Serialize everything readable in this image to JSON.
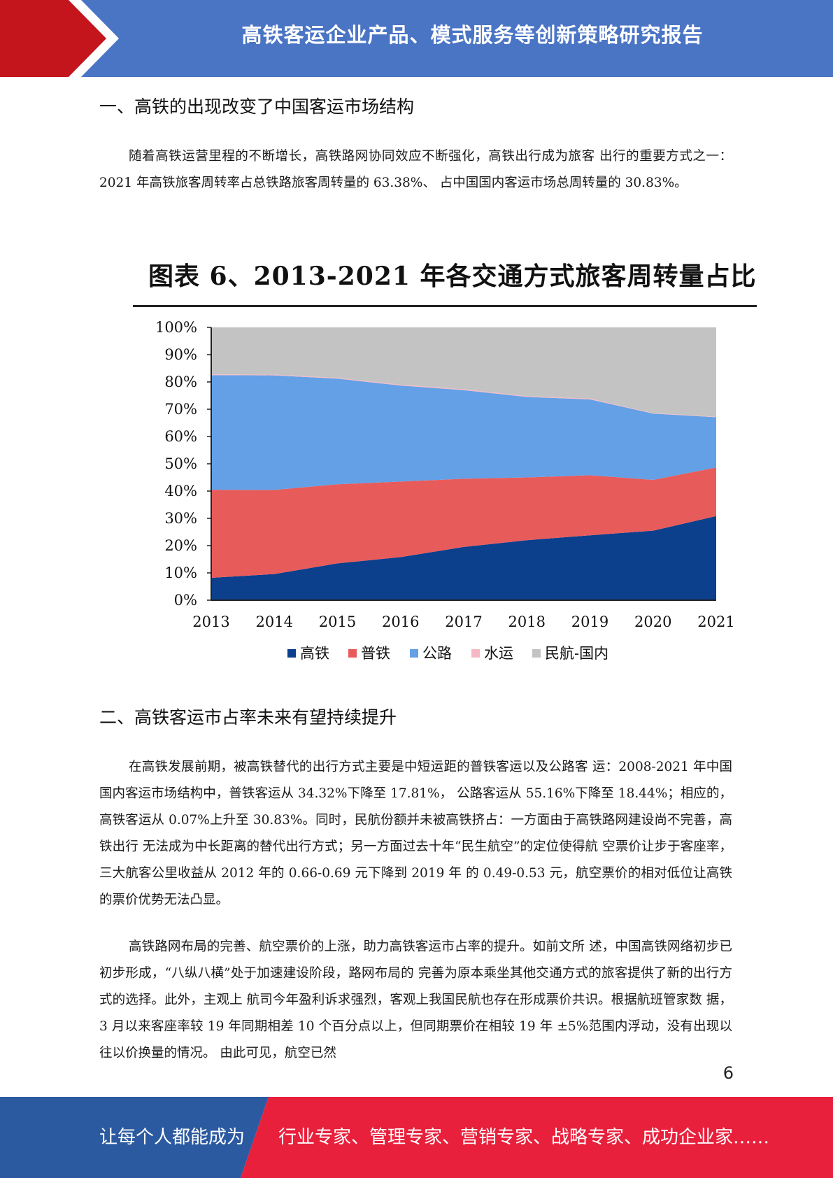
{
  "header": {
    "title": "高铁客运企业产品、模式服务等创新策略研究报告",
    "colors": {
      "bar": "#4a74c4",
      "accent": "#c4141c"
    }
  },
  "section1": {
    "heading": "一、高铁的出现改变了中国客运市场结构",
    "paragraph": "随着高铁运营里程的不断增长，高铁路网协同效应不断强化，高铁出行成为旅客 出行的重要方式之一：2021 年高铁旅客周转率占总铁路旅客周转量的 63.38%、 占中国国内客运市场总周转量的 30.83%。"
  },
  "figure": {
    "title": "图表 6、2013-2021 年各交通方式旅客周转量占比"
  },
  "chart_data": {
    "type": "area",
    "stacked": true,
    "x": [
      "2013",
      "2014",
      "2015",
      "2016",
      "2017",
      "2018",
      "2019",
      "2020",
      "2021"
    ],
    "ylim": [
      0,
      100
    ],
    "yticks": [
      "0%",
      "10%",
      "20%",
      "30%",
      "40%",
      "50%",
      "60%",
      "70%",
      "80%",
      "90%",
      "100%"
    ],
    "legend_position": "bottom",
    "series": [
      {
        "name": "高铁",
        "color": "#0c3f8c",
        "values": [
          8.2,
          9.6,
          13.5,
          15.8,
          19.5,
          22.0,
          23.8,
          25.5,
          30.83
        ]
      },
      {
        "name": "普铁",
        "color": "#e85b5b",
        "values": [
          32.3,
          30.8,
          29.0,
          27.7,
          25.0,
          23.0,
          22.0,
          18.6,
          17.81
        ]
      },
      {
        "name": "公路",
        "color": "#63a0e6",
        "values": [
          42.0,
          42.0,
          38.7,
          35.2,
          32.5,
          29.5,
          27.8,
          24.3,
          18.44
        ]
      },
      {
        "name": "水运",
        "color": "#f6b8c4",
        "values": [
          0.3,
          0.3,
          0.3,
          0.3,
          0.3,
          0.3,
          0.3,
          0.2,
          0.2
        ]
      },
      {
        "name": "民航-国内",
        "color": "#c3c3c3",
        "values": [
          17.2,
          17.3,
          18.5,
          21.0,
          22.7,
          25.2,
          26.1,
          31.4,
          32.72
        ]
      }
    ]
  },
  "section2": {
    "heading": "二、高铁客运市占率未来有望持续提升",
    "paragraph1": "在高铁发展前期，被高铁替代的出行方式主要是中短运距的普铁客运以及公路客 运：2008-2021 年中国国内客运市场结构中，普铁客运从 34.32%下降至 17.81%， 公路客运从 55.16%下降至 18.44%；相应的，高铁客运从 0.07%上升至 30.83%。同时，民航份额并未被高铁挤占：一方面由于高铁路网建设尚不完善，高铁出行 无法成为中长距离的替代出行方式；另一方面过去十年“民生航空”的定位使得航 空票价让步于客座率，三大航客公里收益从 2012 年的 0.66-0.69 元下降到 2019 年 的 0.49-0.53 元，航空票价的相对低位让高铁的票价优势无法凸显。",
    "paragraph2": "高铁路网布局的完善、航空票价的上涨，助力高铁客运市占率的提升。如前文所 述，中国高铁网络初步已初步形成，“八纵八横”处于加速建设阶段，路网布局的 完善为原本乘坐其他交通方式的旅客提供了新的出行方式的选择。此外，主观上 航司今年盈利诉求强烈，客观上我国民航也存在形成票价共识。根据航班管家数 据，3 月以来客座率较 19 年同期相差 10 个百分点以上，但同期票价在相较 19 年 ±5%范围内浮动，没有出现以往以价换量的情况。 由此可见，航空已然"
  },
  "page_number": "6",
  "footer": {
    "left_text": "让每个人都能成为",
    "right_text": "行业专家、管理专家、营销专家、战略专家、成功企业家……",
    "colors": {
      "left": "#2c5aa0",
      "right": "#e8203c"
    }
  }
}
